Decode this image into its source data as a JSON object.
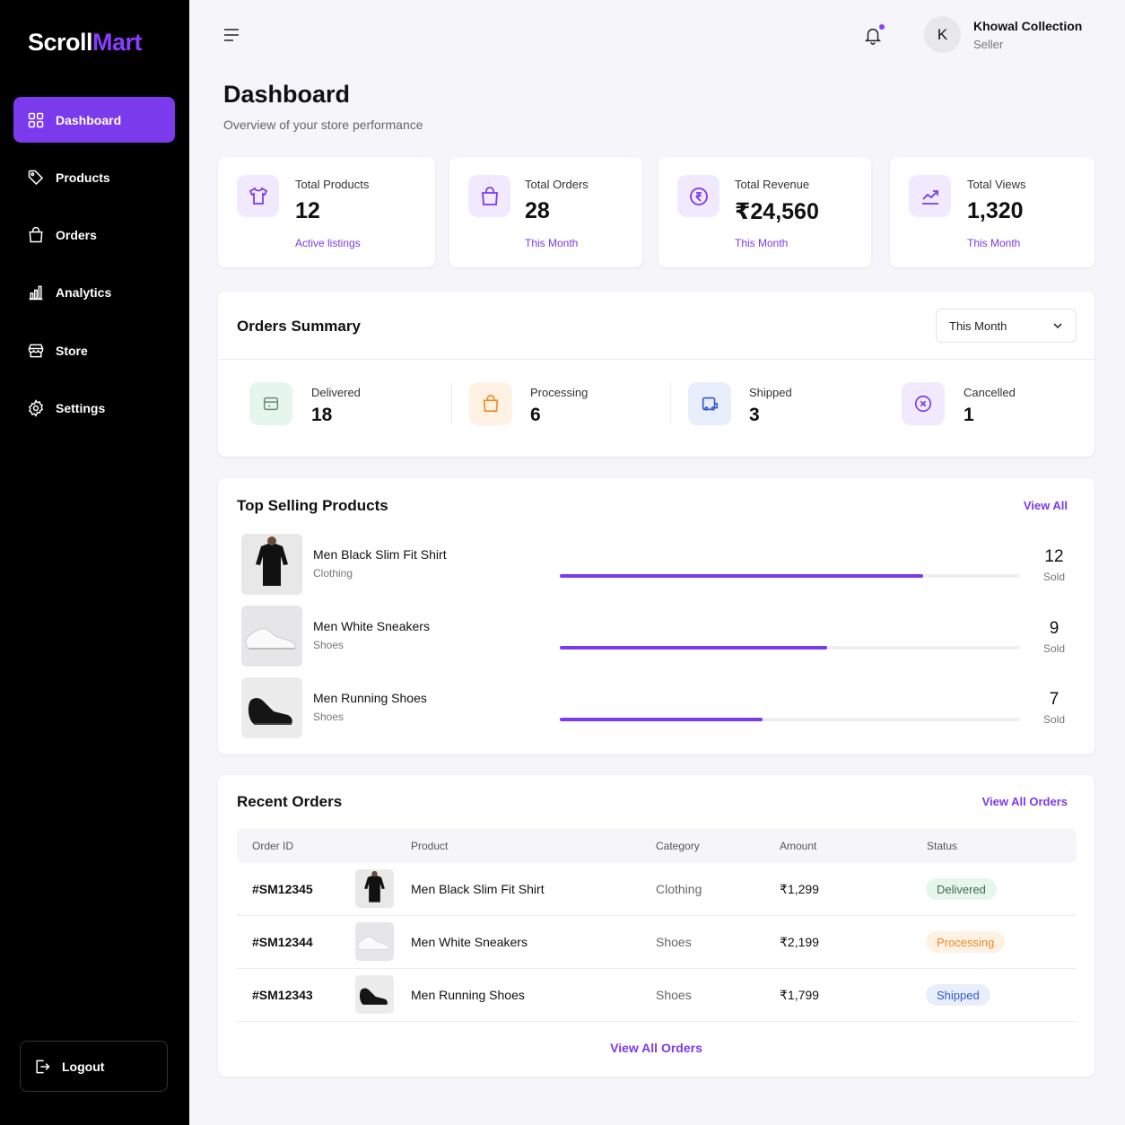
{
  "brand": {
    "part1": "Scroll",
    "part2": "Mart"
  },
  "sidebar": {
    "items": [
      {
        "label": "Dashboard",
        "icon": "grid-icon"
      },
      {
        "label": "Products",
        "icon": "tag-icon"
      },
      {
        "label": "Orders",
        "icon": "bag-icon"
      },
      {
        "label": "Analytics",
        "icon": "bar-chart-icon"
      },
      {
        "label": "Store",
        "icon": "store-icon"
      },
      {
        "label": "Settings",
        "icon": "gear-icon"
      }
    ],
    "logout": "Logout"
  },
  "header": {
    "avatar_initial": "K",
    "user_name": "Khowal Collection",
    "user_role": "Seller"
  },
  "page": {
    "title": "Dashboard",
    "subtitle": "Overview of your store performance"
  },
  "stats": [
    {
      "label": "Total Products",
      "value": "12",
      "note": "Active listings"
    },
    {
      "label": "Total Orders",
      "value": "28",
      "note": "This Month"
    },
    {
      "label": "Total Revenue",
      "value": "₹24,560",
      "note": "This Month"
    },
    {
      "label": "Total Views",
      "value": "1,320",
      "note": "This Month"
    }
  ],
  "orders_summary": {
    "title": "Orders Summary",
    "period": "This Month",
    "items": [
      {
        "label": "Delivered",
        "value": "18"
      },
      {
        "label": "Processing",
        "value": "6"
      },
      {
        "label": "Shipped",
        "value": "3"
      },
      {
        "label": "Cancelled",
        "value": "1"
      }
    ]
  },
  "top_selling": {
    "title": "Top Selling Products",
    "view_all": "View All",
    "sold_label": "Sold",
    "products": [
      {
        "name": "Men Black Slim Fit Shirt",
        "category": "Clothing",
        "sold": "12",
        "progress": 0.79
      },
      {
        "name": "Men White Sneakers",
        "category": "Shoes",
        "sold": "9",
        "progress": 0.58
      },
      {
        "name": "Men Running Shoes",
        "category": "Shoes",
        "sold": "7",
        "progress": 0.44
      }
    ]
  },
  "recent_orders": {
    "title": "Recent Orders",
    "view_all_top": "View All Orders",
    "view_all_bottom": "View All Orders",
    "columns": [
      "Order ID",
      "Product",
      "Category",
      "Amount",
      "Status"
    ],
    "rows": [
      {
        "id": "#SM12345",
        "product": "Men Black Slim Fit Shirt",
        "category": "Clothing",
        "amount": "₹1,299",
        "status": "Delivered"
      },
      {
        "id": "#SM12344",
        "product": "Men White Sneakers",
        "category": "Shoes",
        "amount": "₹2,199",
        "status": "Processing"
      },
      {
        "id": "#SM12343",
        "product": "Men Running Shoes",
        "category": "Shoes",
        "amount": "₹1,799",
        "status": "Shipped"
      }
    ]
  },
  "colors": {
    "accent": "#7c3aed",
    "delivered_bg": "#e6f6ec",
    "delivered_fg": "#3f6a4e",
    "processing_bg": "#fff1e4",
    "processing_fg": "#f08a24",
    "shipped_bg": "#e8eefc",
    "shipped_fg": "#2f5bd3"
  }
}
